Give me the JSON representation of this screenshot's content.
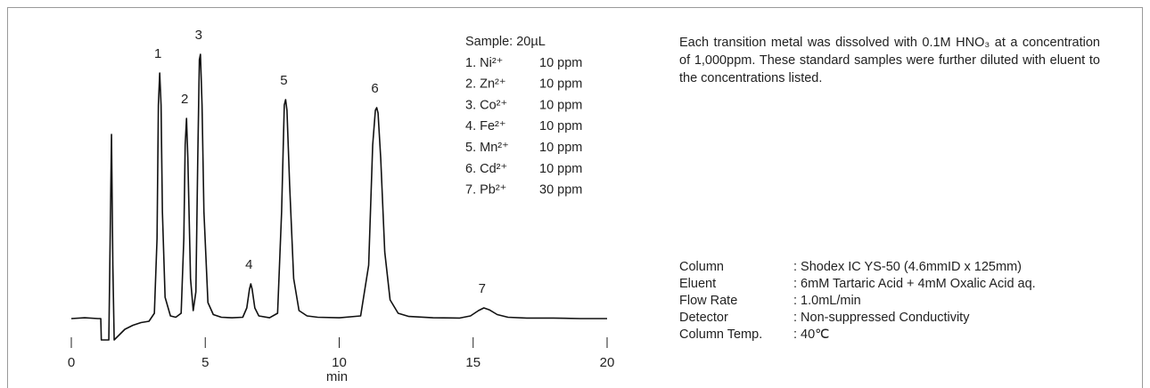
{
  "chart_data": {
    "type": "line",
    "x": [
      0,
      0.5,
      1.0,
      1.1,
      1.12,
      1.4,
      1.45,
      1.5,
      1.55,
      1.6,
      1.8,
      2.0,
      2.3,
      2.6,
      2.9,
      3.1,
      3.2,
      3.25,
      3.3,
      3.35,
      3.4,
      3.5,
      3.7,
      3.9,
      4.1,
      4.2,
      4.25,
      4.3,
      4.35,
      4.45,
      4.55,
      4.65,
      4.72,
      4.78,
      4.82,
      4.88,
      4.95,
      5.1,
      5.3,
      5.6,
      6.0,
      6.4,
      6.55,
      6.65,
      6.7,
      6.75,
      6.85,
      7.0,
      7.4,
      7.7,
      7.85,
      7.95,
      8.0,
      8.05,
      8.15,
      8.3,
      8.5,
      8.8,
      9.2,
      10.0,
      10.8,
      11.1,
      11.25,
      11.35,
      11.4,
      11.45,
      11.55,
      11.7,
      11.9,
      12.2,
      12.6,
      13.5,
      14.5,
      14.9,
      15.2,
      15.4,
      15.6,
      15.9,
      16.3,
      17,
      18,
      19,
      20
    ],
    "series": [
      {
        "color": "#111111",
        "values": [
          0,
          0.3,
          0,
          0,
          -8,
          -8,
          30,
          69,
          20,
          -8,
          -6,
          -4,
          -2.5,
          -1.5,
          -1,
          2,
          30,
          80,
          92,
          80,
          40,
          8,
          1,
          0.5,
          2,
          30,
          65,
          75,
          60,
          15,
          3,
          10,
          60,
          97,
          99,
          80,
          40,
          6,
          1.5,
          0.5,
          0.3,
          0.5,
          4,
          11,
          13,
          11,
          4,
          1,
          0.3,
          2,
          40,
          80,
          82,
          78,
          50,
          15,
          3,
          1,
          0.5,
          0.3,
          1,
          20,
          65,
          78,
          79,
          77,
          60,
          25,
          7,
          2,
          0.8,
          0.3,
          0.2,
          1,
          3,
          4,
          3.3,
          1.5,
          0.5,
          0.2,
          0.2,
          0,
          0
        ]
      }
    ],
    "xlim": [
      0,
      20
    ],
    "xticks": [
      0,
      5,
      10,
      15,
      20
    ],
    "xlabel": "min",
    "ylim": [
      -10,
      100
    ],
    "annotations": [
      {
        "text": "1",
        "x": 3.3,
        "y": 92
      },
      {
        "text": "2",
        "x": 4.3,
        "y": 75
      },
      {
        "text": "3",
        "x": 4.82,
        "y": 99
      },
      {
        "text": "4",
        "x": 6.7,
        "y": 13
      },
      {
        "text": "5",
        "x": 8.0,
        "y": 82
      },
      {
        "text": "6",
        "x": 11.4,
        "y": 79
      },
      {
        "text": "7",
        "x": 15.4,
        "y": 4
      }
    ]
  },
  "sample": {
    "title": "Sample: 20µL",
    "items": [
      {
        "label": "1. Ni²⁺",
        "conc": "10 ppm"
      },
      {
        "label": "2. Zn²⁺",
        "conc": "10 ppm"
      },
      {
        "label": "3. Co²⁺",
        "conc": "10 ppm"
      },
      {
        "label": "4. Fe²⁺",
        "conc": "10 ppm"
      },
      {
        "label": "5. Mn²⁺",
        "conc": "10 ppm"
      },
      {
        "label": "6. Cd²⁺",
        "conc": "10 ppm"
      },
      {
        "label": "7. Pb²⁺",
        "conc": "30 ppm"
      }
    ]
  },
  "description": "Each transition metal was dissolved with 0.1M HNO₃ at a concentration of 1,000ppm. These standard samples were further diluted with eluent to the concentrations listed.",
  "conditions": [
    {
      "key": "Column",
      "value": ": Shodex IC YS-50 (4.6mmID x 125mm)"
    },
    {
      "key": "Eluent",
      "value": ": 6mM Tartaric Acid + 4mM Oxalic Acid aq."
    },
    {
      "key": "Flow Rate",
      "value": ": 1.0mL/min"
    },
    {
      "key": "Detector",
      "value": ": Non-suppressed Conductivity"
    },
    {
      "key": "Column Temp.",
      "value": ": 40℃"
    }
  ]
}
